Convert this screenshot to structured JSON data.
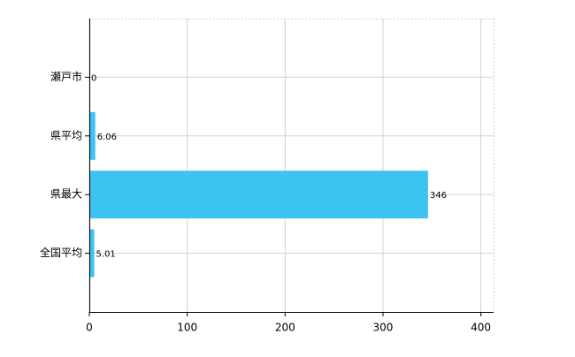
{
  "chart_data": {
    "type": "bar",
    "orientation": "horizontal",
    "categories": [
      "瀬戸市",
      "県平均",
      "県最大",
      "全国平均"
    ],
    "values": [
      0,
      6.06,
      346,
      5.01
    ],
    "color": "#3cc3f2",
    "xlim": [
      0,
      413
    ],
    "xticks": [
      0,
      100,
      200,
      300,
      400
    ],
    "grid": true
  }
}
